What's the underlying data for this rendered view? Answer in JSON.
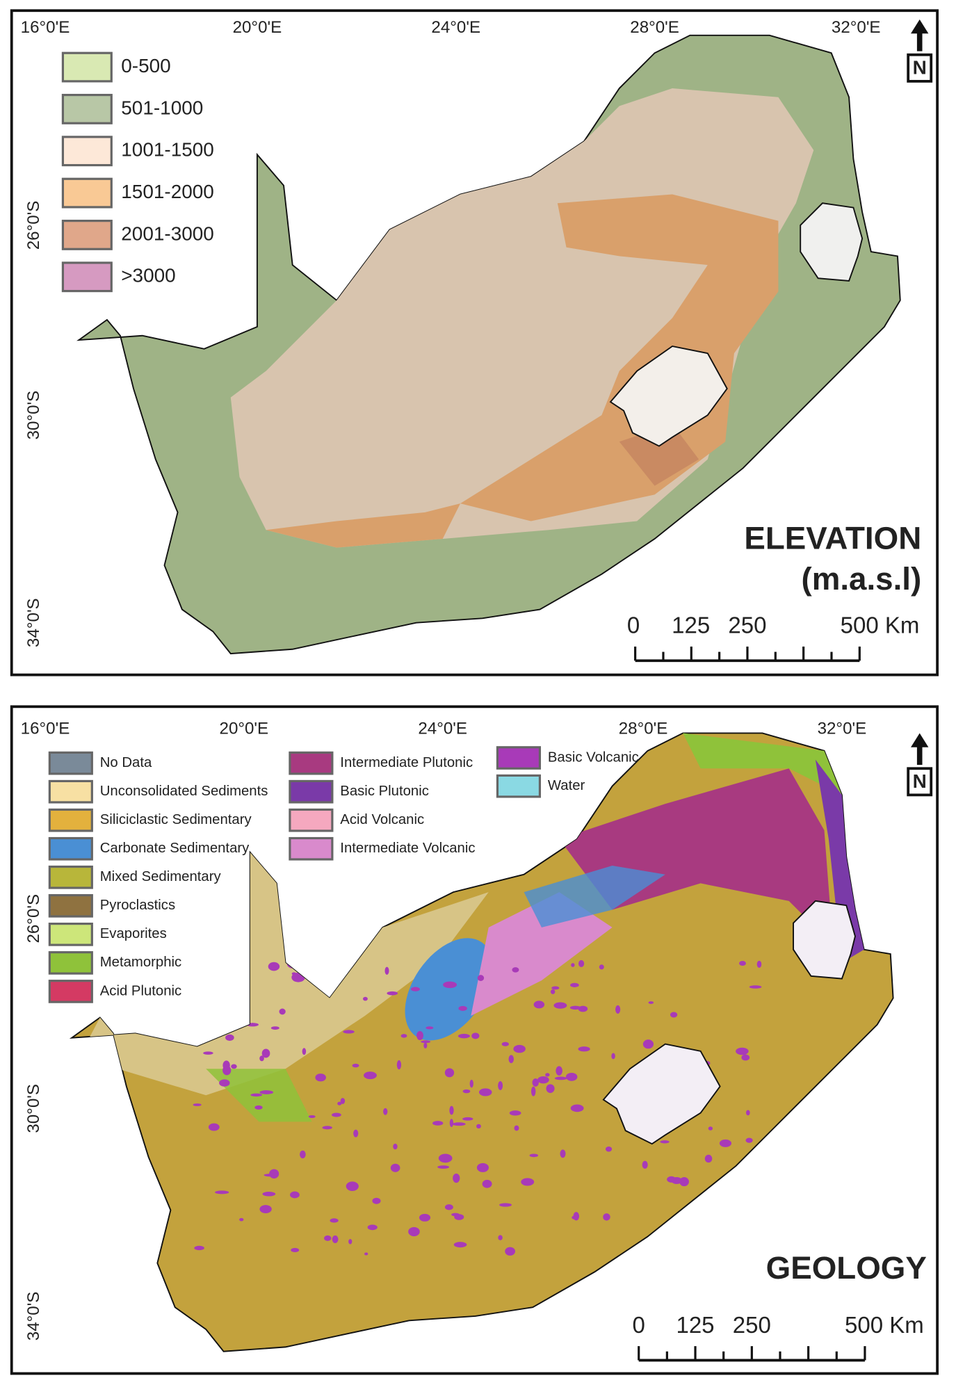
{
  "panels": [
    {
      "title": [
        "ELEVATION",
        "(m.a.s.l)"
      ],
      "north": "N",
      "lon_labels": [
        "16°0'E",
        "20°0'E",
        "24°0'E",
        "28°0'E",
        "32°0'E"
      ],
      "lat_labels": [
        "26°0'S",
        "30°0'S",
        "34°0'S"
      ],
      "legend": [
        {
          "label": "0-500",
          "color": "#d9e9b3"
        },
        {
          "label": "501-1000",
          "color": "#b8c7a6"
        },
        {
          "label": "1001-1500",
          "color": "#fde8d8"
        },
        {
          "label": "1501-2000",
          "color": "#f9c995"
        },
        {
          "label": "2001-3000",
          "color": "#e0a78a"
        },
        {
          "label": ">3000",
          "color": "#d69ac1"
        }
      ],
      "scale_bar": [
        "0",
        "125",
        "250",
        "500 Km"
      ]
    },
    {
      "title": [
        "GEOLOGY"
      ],
      "north": "N",
      "lon_labels": [
        "16°0'E",
        "20°0'E",
        "24°0'E",
        "28°0'E",
        "32°0'E"
      ],
      "lat_labels": [
        "26°0'S",
        "30°0'S",
        "34°0'S"
      ],
      "legend": [
        {
          "label": "No Data",
          "color": "#7a8a99"
        },
        {
          "label": "Unconsolidated Sediments",
          "color": "#f7e0a3"
        },
        {
          "label": "Siliciclastic Sedimentary",
          "color": "#e3b13d"
        },
        {
          "label": "Carbonate Sedimentary",
          "color": "#4a8fd4"
        },
        {
          "label": "Mixed Sedimentary",
          "color": "#b8b63a"
        },
        {
          "label": "Pyroclastics",
          "color": "#8f7240"
        },
        {
          "label": "Evaporites",
          "color": "#cde67a"
        },
        {
          "label": "Metamorphic",
          "color": "#8fc23a"
        },
        {
          "label": "Acid Plutonic",
          "color": "#d43a63"
        },
        {
          "label": "Intermediate Plutonic",
          "color": "#a83a80"
        },
        {
          "label": "Basic Plutonic",
          "color": "#7a3aa8"
        },
        {
          "label": "Acid Volcanic",
          "color": "#f5a8bf"
        },
        {
          "label": "Intermediate Volcanic",
          "color": "#d98acc"
        },
        {
          "label": "Basic Volcanic",
          "color": "#a83ab8"
        },
        {
          "label": "Water",
          "color": "#8ad9e3"
        }
      ],
      "scale_bar": [
        "0",
        "125",
        "250",
        "500 Km"
      ]
    }
  ]
}
